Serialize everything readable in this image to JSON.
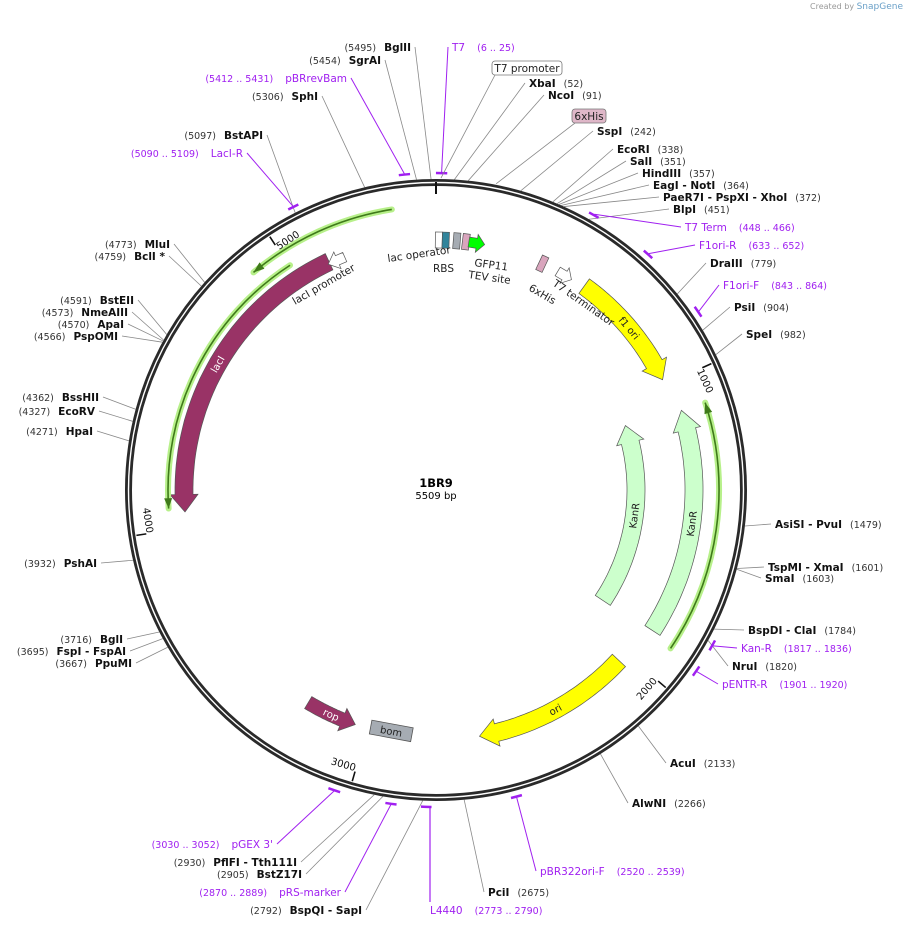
{
  "credit": {
    "prefix": "Created by",
    "brand": "SnapGene"
  },
  "plasmid": {
    "name": "1BR9",
    "length_label": "5509 bp",
    "length_bp": 5509
  },
  "ticks": [
    1000,
    2000,
    3000,
    4000,
    5000
  ],
  "tick_labels": [
    "1000",
    "2000",
    "3000",
    "4000",
    "5000"
  ],
  "sites": [
    {
      "name": "BglII",
      "pos": 5495
    },
    {
      "name": "SgrAI",
      "pos": 5454
    },
    {
      "name": "SphI",
      "pos": 5306
    },
    {
      "name": "BstAPI",
      "pos": 5097
    },
    {
      "name": "MluI",
      "pos": 4773
    },
    {
      "name": "BclI *",
      "pos": 4759
    },
    {
      "name": "BstEII",
      "pos": 4591
    },
    {
      "name": "NmeAIII",
      "pos": 4573
    },
    {
      "name": "ApaI",
      "pos": 4570
    },
    {
      "name": "PspOMI",
      "pos": 4566
    },
    {
      "name": "BssHII",
      "pos": 4362
    },
    {
      "name": "EcoRV",
      "pos": 4327
    },
    {
      "name": "HpaI",
      "pos": 4271
    },
    {
      "name": "PshAI",
      "pos": 3932
    },
    {
      "name": "BglI",
      "pos": 3716
    },
    {
      "name": "FspI  - FspAI",
      "pos": 3695
    },
    {
      "name": "PpuMI",
      "pos": 3667
    },
    {
      "name": "PflFI  - Tth111I",
      "pos": 2930
    },
    {
      "name": "BstZ17I",
      "pos": 2905
    },
    {
      "name": "BspQI  - SapI",
      "pos": 2792
    },
    {
      "name": "PciI",
      "pos": 2675
    },
    {
      "name": "AlwNI",
      "pos": 2266
    },
    {
      "name": "AcuI",
      "pos": 2133
    },
    {
      "name": "NruI",
      "pos": 1820
    },
    {
      "name": "BspDI  - ClaI",
      "pos": 1784
    },
    {
      "name": "TspMI  - XmaI",
      "pos": 1601
    },
    {
      "name": "SmaI",
      "pos": 1603
    },
    {
      "name": "AsiSI  - PvuI",
      "pos": 1479
    },
    {
      "name": "SpeI",
      "pos": 982
    },
    {
      "name": "PsiI",
      "pos": 904
    },
    {
      "name": "DraIII",
      "pos": 779
    },
    {
      "name": "BlpI",
      "pos": 451
    },
    {
      "name": "PaeR7I  - PspXI  - XhoI",
      "pos": 372
    },
    {
      "name": "EagI  - NotI",
      "pos": 364
    },
    {
      "name": "HindIII",
      "pos": 357
    },
    {
      "name": "SalI",
      "pos": 351
    },
    {
      "name": "EcoRI",
      "pos": 338
    },
    {
      "name": "SspI",
      "pos": 242
    },
    {
      "name": "NcoI",
      "pos": 91
    },
    {
      "name": "XbaI",
      "pos": 52
    }
  ],
  "primers": [
    {
      "name": "T7",
      "range": "(6 .. 25)",
      "start": 6,
      "end": 25
    },
    {
      "name": "pBRrevBam",
      "range": "(5412 .. 5431)",
      "start": 5412,
      "end": 5431
    },
    {
      "name": "LacI-R",
      "range": "(5090 .. 5109)",
      "start": 5090,
      "end": 5109
    },
    {
      "name": "pGEX 3'",
      "range": "(3030 .. 3052)",
      "start": 3030,
      "end": 3052
    },
    {
      "name": "pRS-marker",
      "range": "(2870 .. 2889)",
      "start": 2870,
      "end": 2889
    },
    {
      "name": "L4440",
      "range": "(2773 .. 2790)",
      "start": 2773,
      "end": 2790
    },
    {
      "name": "pBR322ori-F",
      "range": "(2520 .. 2539)",
      "start": 2520,
      "end": 2539
    },
    {
      "name": "pENTR-R",
      "range": "(1901 .. 1920)",
      "start": 1901,
      "end": 1920
    },
    {
      "name": "Kan-R",
      "range": "(1817 .. 1836)",
      "start": 1817,
      "end": 1836
    },
    {
      "name": "F1ori-F",
      "range": "(843 .. 864)",
      "start": 843,
      "end": 864
    },
    {
      "name": "F1ori-R",
      "range": "(633 .. 652)",
      "start": 633,
      "end": 652
    },
    {
      "name": "T7 Term",
      "range": "(448 .. 466)",
      "start": 448,
      "end": 466
    }
  ],
  "features": [
    {
      "name": "lacI",
      "start": 5125,
      "end": 4055,
      "color": "#993366",
      "text_color": "#ffffff"
    },
    {
      "name": "KanR",
      "start": 1882,
      "end": 1102,
      "color": "#ccffcc",
      "text_color": "#222222"
    },
    {
      "name": "KanR",
      "start": 1890,
      "end": 1090,
      "color": "#ccffcc",
      "text_color": "#222222"
    },
    {
      "name": "f1 ori",
      "start": 551,
      "end": 980,
      "color": "#ffff00",
      "text_color": "#222222"
    },
    {
      "name": "ori",
      "start": 2035,
      "end": 2601,
      "color": "#ffff00",
      "text_color": "#222222"
    },
    {
      "name": "rop",
      "start": 3229,
      "end": 3045,
      "color": "#993366",
      "text_color": "#ffffff"
    },
    {
      "name": "bom",
      "start": 2877,
      "end": 2954,
      "color": "#a6acb3",
      "text_color": "#222222"
    }
  ],
  "small_features": [
    {
      "name": "lac operator",
      "pos": 10,
      "color": "#ffffff",
      "shape": "box"
    },
    {
      "name": "",
      "pos": 34,
      "color": "#31849b",
      "shape": "box"
    },
    {
      "name": "RBS",
      "pos": 73,
      "color": "#a6acb3",
      "shape": "box"
    },
    {
      "name": "TEV site",
      "pos": 105,
      "color": "#d9a5bd",
      "shape": "box"
    },
    {
      "name": "GFP11",
      "pos": 140,
      "color": "#00ff00",
      "shape": "arrow"
    },
    {
      "name": "6xHis",
      "pos": 385,
      "color": "#d9a5bd",
      "shape": "box"
    },
    {
      "name": "T7 terminator",
      "pos": 470,
      "color": "#ffffff",
      "shape": "arrow"
    },
    {
      "name": "lacI promoter",
      "pos": 5150,
      "color": "#ffffff",
      "shape": "arrow-ccw"
    }
  ],
  "orfs": [
    {
      "start": 5372,
      "end": 4897
    },
    {
      "start": 5004,
      "end": 4071
    },
    {
      "start": 1898,
      "end": 1102
    }
  ],
  "boxed_labels": [
    {
      "name": "T7 promoter",
      "fill": "#ffffff"
    },
    {
      "name": "6xHis",
      "fill": "#dfb7c8"
    }
  ],
  "colors": {
    "primer": "#a020f0",
    "ring": "#2a2a2a",
    "orf_halo": "#b7f08a",
    "orf_line": "#3f7a1a"
  }
}
